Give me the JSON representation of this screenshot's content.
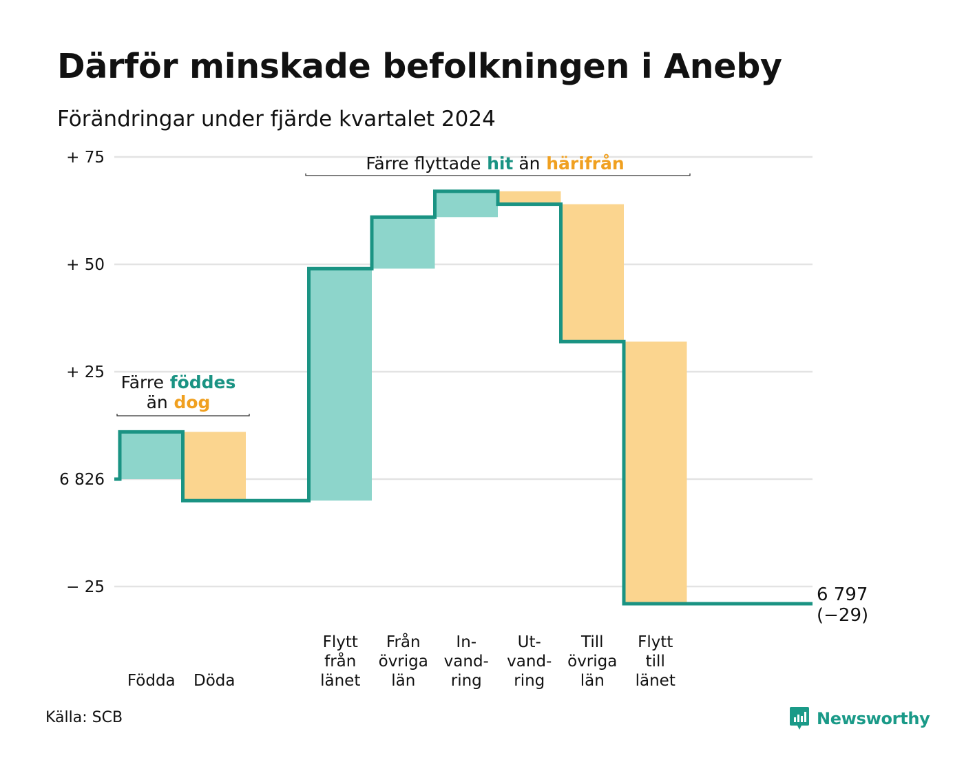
{
  "header": {
    "title": "Därför minskade befolkningen i Aneby",
    "subtitle": "Förändringar under fjärde kvartalet 2024"
  },
  "footer": {
    "source": "Källa: SCB",
    "brand": "Newsworthy"
  },
  "colors": {
    "increase": "#8dd5cb",
    "decrease": "#fbd58f",
    "line": "#1a9383",
    "orange_text": "#f0a020",
    "teal_text": "#1a9383",
    "grid": "#e3e3e3"
  },
  "chart_data": {
    "type": "bar",
    "subtype": "waterfall",
    "start_value": 6826,
    "end_value": 6797,
    "end_label": "6 797",
    "end_change_label": "(−29)",
    "categories": [
      {
        "label": [
          "Födda"
        ],
        "value": 11
      },
      {
        "label": [
          "Döda"
        ],
        "value": -16
      },
      {
        "label": [
          ""
        ],
        "value": 0
      },
      {
        "label": [
          "Flytt",
          "från",
          "länet"
        ],
        "value": 54
      },
      {
        "label": [
          "Från",
          "övriga",
          "län"
        ],
        "value": 12
      },
      {
        "label": [
          "In-",
          "vand-",
          "ring"
        ],
        "value": 6
      },
      {
        "label": [
          "Ut-",
          "vand-",
          "ring"
        ],
        "value": -3
      },
      {
        "label": [
          "Till",
          "övriga",
          "län"
        ],
        "value": -32
      },
      {
        "label": [
          "Flytt",
          "till",
          "länet"
        ],
        "value": -61
      }
    ],
    "y_axis": {
      "ticks": [
        {
          "value": 75,
          "label": "+ 75"
        },
        {
          "value": 50,
          "label": "+ 50"
        },
        {
          "value": 25,
          "label": "+ 25"
        },
        {
          "value": 0,
          "label": "6 826"
        },
        {
          "value": -25,
          "label": "− 25"
        }
      ],
      "range": [
        -29,
        75
      ]
    },
    "grid": true,
    "annotations": [
      {
        "id": "births",
        "parts": [
          [
            {
              "text": "Färre",
              "style": "plain"
            },
            {
              "text": "föddes",
              "style": "teal"
            }
          ],
          [
            {
              "text": "än",
              "style": "plain"
            },
            {
              "text": "dog",
              "style": "orange"
            }
          ]
        ]
      },
      {
        "id": "moves",
        "parts": [
          [
            {
              "text": "Färre flyttade",
              "style": "plain"
            },
            {
              "text": "hit",
              "style": "teal"
            },
            {
              "text": "än",
              "style": "plain"
            },
            {
              "text": "härifrån",
              "style": "orange"
            }
          ]
        ]
      }
    ]
  }
}
